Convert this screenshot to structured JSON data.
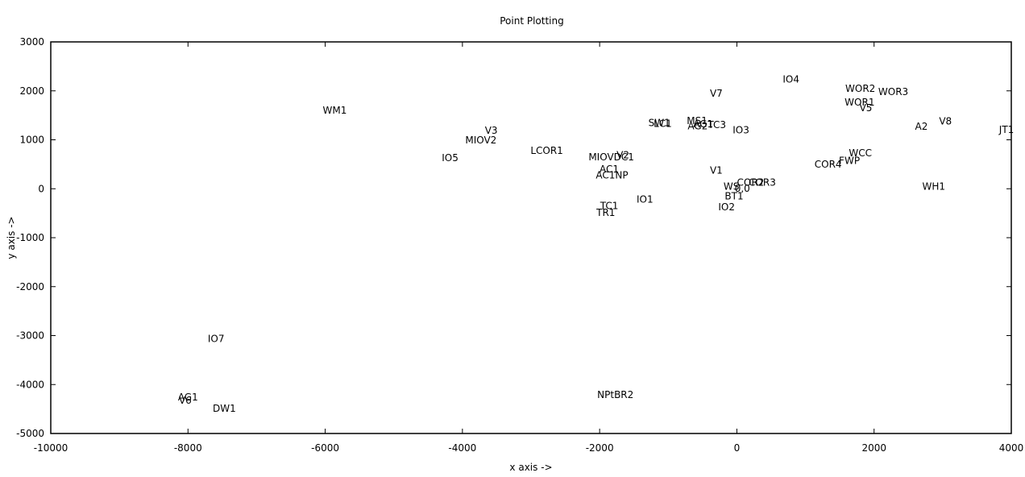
{
  "chart_data": {
    "type": "scatter",
    "title": "Point Plotting",
    "xlabel": "x axis ->",
    "ylabel": "y axis ->",
    "xlim": [
      -10000,
      4000
    ],
    "ylim": [
      -5000,
      3000
    ],
    "xticks": [
      -10000,
      -8000,
      -6000,
      -4000,
      -2000,
      0,
      2000,
      4000
    ],
    "yticks": [
      -5000,
      -4000,
      -3000,
      -2000,
      -1000,
      0,
      1000,
      2000,
      3000
    ],
    "grid": false,
    "points": [
      {
        "label": "WM1",
        "x": -5860,
        "y": 1590
      },
      {
        "label": "V3",
        "x": -3580,
        "y": 1180
      },
      {
        "label": "MIOV2",
        "x": -3730,
        "y": 980
      },
      {
        "label": "IO5",
        "x": -4180,
        "y": 620
      },
      {
        "label": "LCOR1",
        "x": -2770,
        "y": 770
      },
      {
        "label": "MIOVDC1",
        "x": -1830,
        "y": 640
      },
      {
        "label": "V2",
        "x": -1660,
        "y": 680
      },
      {
        "label": "AC1",
        "x": -1860,
        "y": 390
      },
      {
        "label": "AC1NP",
        "x": -1820,
        "y": 270
      },
      {
        "label": "TC1",
        "x": -1860,
        "y": -360
      },
      {
        "label": "TR1",
        "x": -1910,
        "y": -500
      },
      {
        "label": "IO1",
        "x": -1340,
        "y": -230
      },
      {
        "label": "SW1",
        "x": -1130,
        "y": 1340
      },
      {
        "label": "LC1",
        "x": -1080,
        "y": 1320
      },
      {
        "label": "MS1",
        "x": -580,
        "y": 1380
      },
      {
        "label": "AG2",
        "x": -570,
        "y": 1270
      },
      {
        "label": "AG1",
        "x": -490,
        "y": 1310
      },
      {
        "label": "TC3",
        "x": -290,
        "y": 1300
      },
      {
        "label": "V7",
        "x": -300,
        "y": 1940
      },
      {
        "label": "IO3",
        "x": 60,
        "y": 1190
      },
      {
        "label": "IO4",
        "x": 790,
        "y": 2230
      },
      {
        "label": "V1",
        "x": -300,
        "y": 370
      },
      {
        "label": "COR2",
        "x": 200,
        "y": 120
      },
      {
        "label": "COR3",
        "x": 370,
        "y": 120
      },
      {
        "label": "WS",
        "x": -80,
        "y": 40
      },
      {
        "label": "0,0",
        "x": 80,
        "y": 0
      },
      {
        "label": "BT1",
        "x": -40,
        "y": -160
      },
      {
        "label": "IO2",
        "x": -150,
        "y": -380
      },
      {
        "label": "COR4",
        "x": 1330,
        "y": 490
      },
      {
        "label": "FWP",
        "x": 1640,
        "y": 560
      },
      {
        "label": "WCC",
        "x": 1800,
        "y": 720
      },
      {
        "label": "WOR2",
        "x": 1800,
        "y": 2040
      },
      {
        "label": "WOR1",
        "x": 1790,
        "y": 1760
      },
      {
        "label": "V5",
        "x": 1880,
        "y": 1640
      },
      {
        "label": "WOR3",
        "x": 2280,
        "y": 1970
      },
      {
        "label": "A2",
        "x": 2690,
        "y": 1260
      },
      {
        "label": "V8",
        "x": 3040,
        "y": 1370
      },
      {
        "label": "WH1",
        "x": 2870,
        "y": 40
      },
      {
        "label": "JT1",
        "x": 3930,
        "y": 1200
      },
      {
        "label": "IO7",
        "x": -7590,
        "y": -3070
      },
      {
        "label": "AG1",
        "x": -8000,
        "y": -4270
      },
      {
        "label": "V6",
        "x": -8040,
        "y": -4330
      },
      {
        "label": "DW1",
        "x": -7470,
        "y": -4500
      },
      {
        "label": "NPtBR2",
        "x": -1770,
        "y": -4220
      }
    ]
  }
}
